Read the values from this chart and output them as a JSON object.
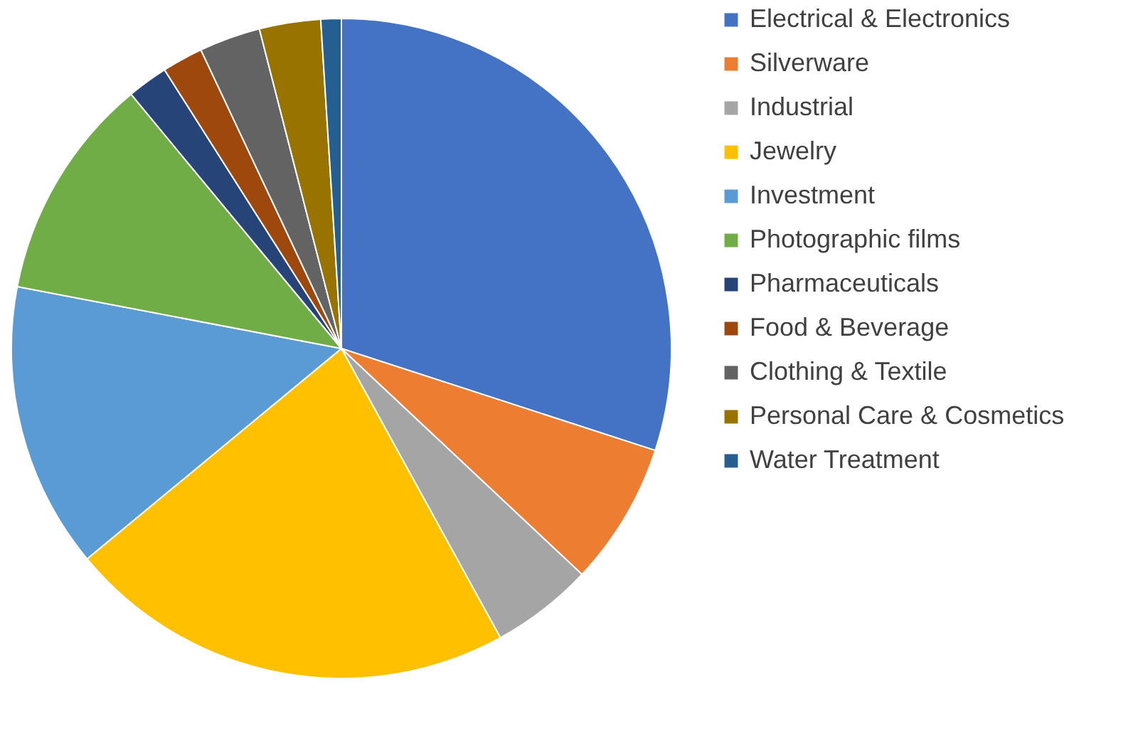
{
  "chart_data": {
    "type": "pie",
    "categories": [
      "Electrical & Electronics",
      "Silverware",
      "Industrial",
      "Jewelry",
      "Investment",
      "Photographic films",
      "Pharmaceuticals",
      "Food & Beverage",
      "Clothing & Textile",
      "Personal Care & Cosmetics",
      "Water Treatment"
    ],
    "values": [
      30,
      7,
      5,
      22,
      14,
      11,
      2,
      2,
      3,
      3,
      1
    ],
    "colors": [
      "#4472c4",
      "#ed7d31",
      "#a5a5a5",
      "#ffc000",
      "#5b9bd5",
      "#70ad47",
      "#264478",
      "#9e480e",
      "#636363",
      "#997300",
      "#255e91"
    ],
    "legend": "right"
  }
}
